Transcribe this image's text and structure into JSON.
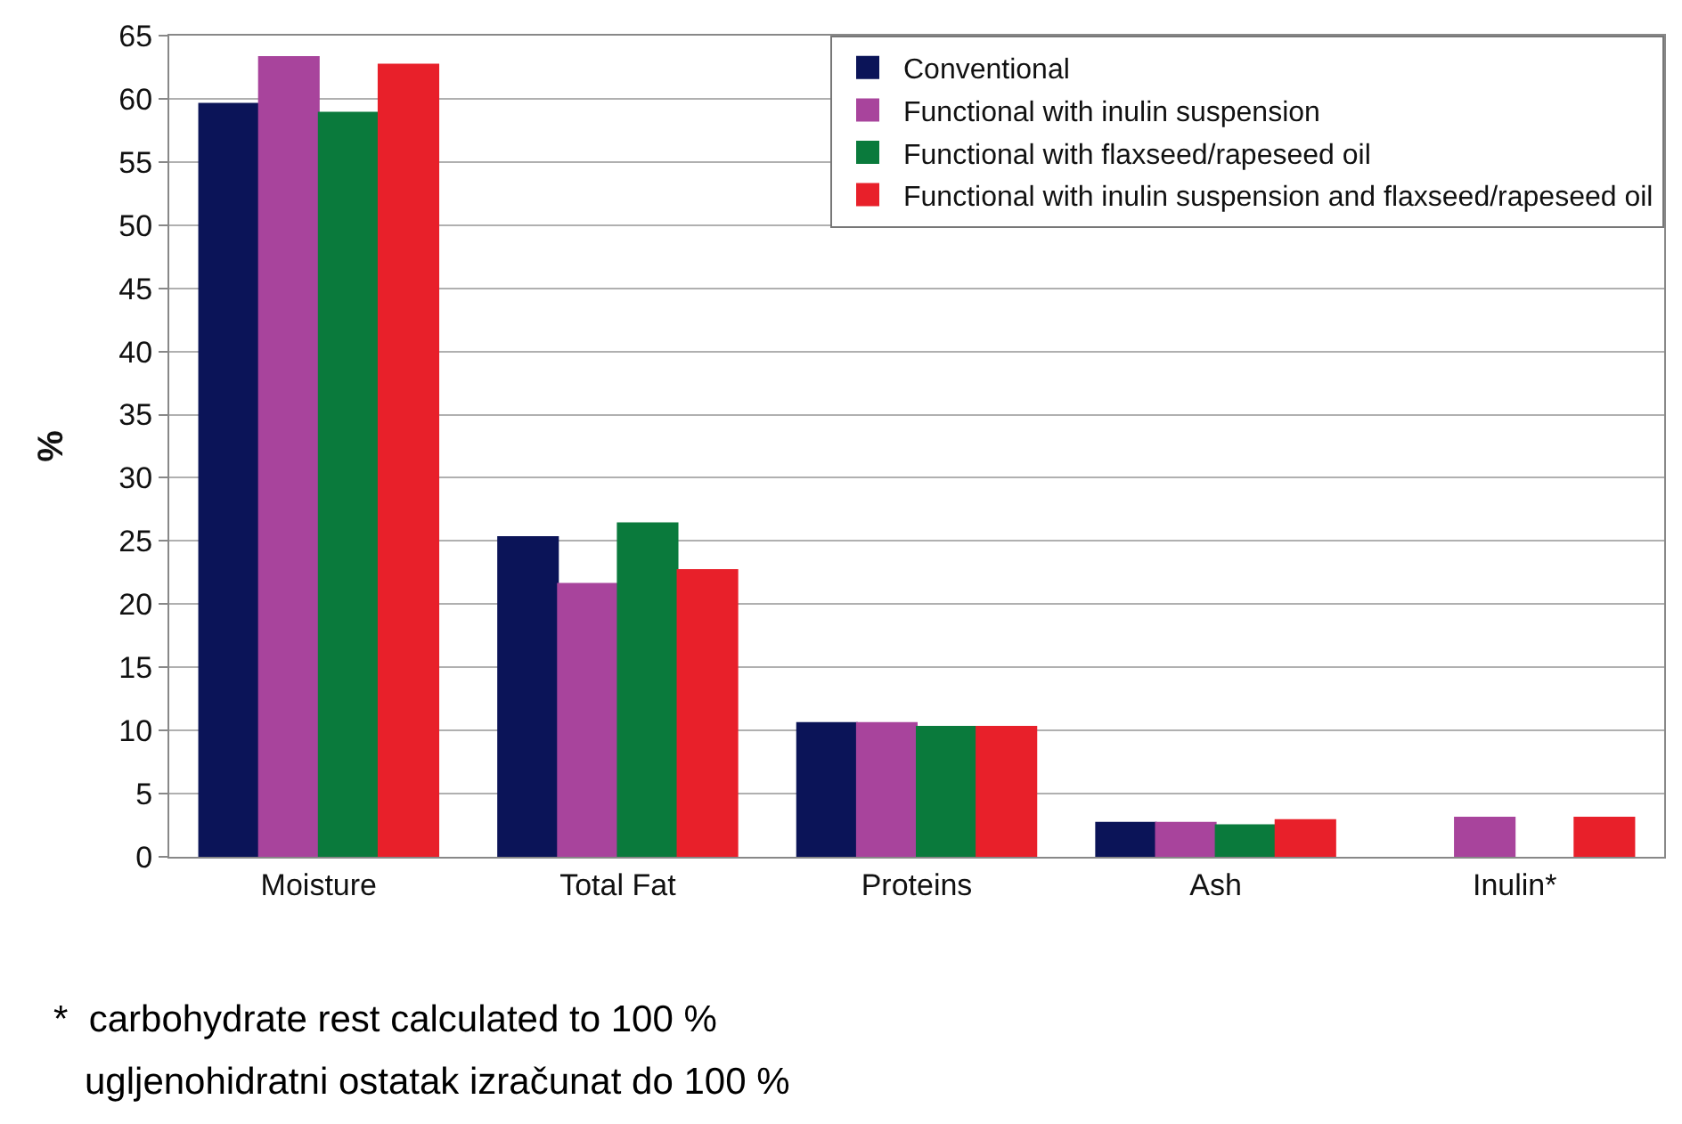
{
  "chart_data": {
    "type": "bar",
    "ylabel": "%",
    "categories": [
      "Moisture",
      "Total Fat",
      "Proteins",
      "Ash",
      "Inulin*"
    ],
    "series": [
      {
        "name": "Conventional",
        "color": "#0b1458",
        "values": [
          59.6,
          25.3,
          10.6,
          2.7,
          null
        ]
      },
      {
        "name": "Functional with inulin suspension",
        "color": "#a8449c",
        "values": [
          63.3,
          21.6,
          10.6,
          2.7,
          3.1
        ]
      },
      {
        "name": "Functional with flaxseed/rapeseed oil",
        "color": "#0a7a3c",
        "values": [
          58.9,
          26.4,
          10.3,
          2.5,
          null
        ]
      },
      {
        "name": "Functional with inulin suspension and flaxseed/rapeseed oil",
        "color": "#e8202a",
        "values": [
          62.7,
          22.7,
          10.3,
          2.9,
          3.1
        ]
      }
    ],
    "ylim": [
      0,
      65
    ],
    "yticks": [
      0,
      5,
      10,
      15,
      20,
      25,
      30,
      35,
      40,
      45,
      50,
      55,
      60,
      65
    ],
    "grid": "y",
    "legend": "top right",
    "annotations": [
      "*  carbohydrate rest calculated to 100 %",
      "   ugljenohidratni ostatak izračunat do 100 %"
    ]
  }
}
